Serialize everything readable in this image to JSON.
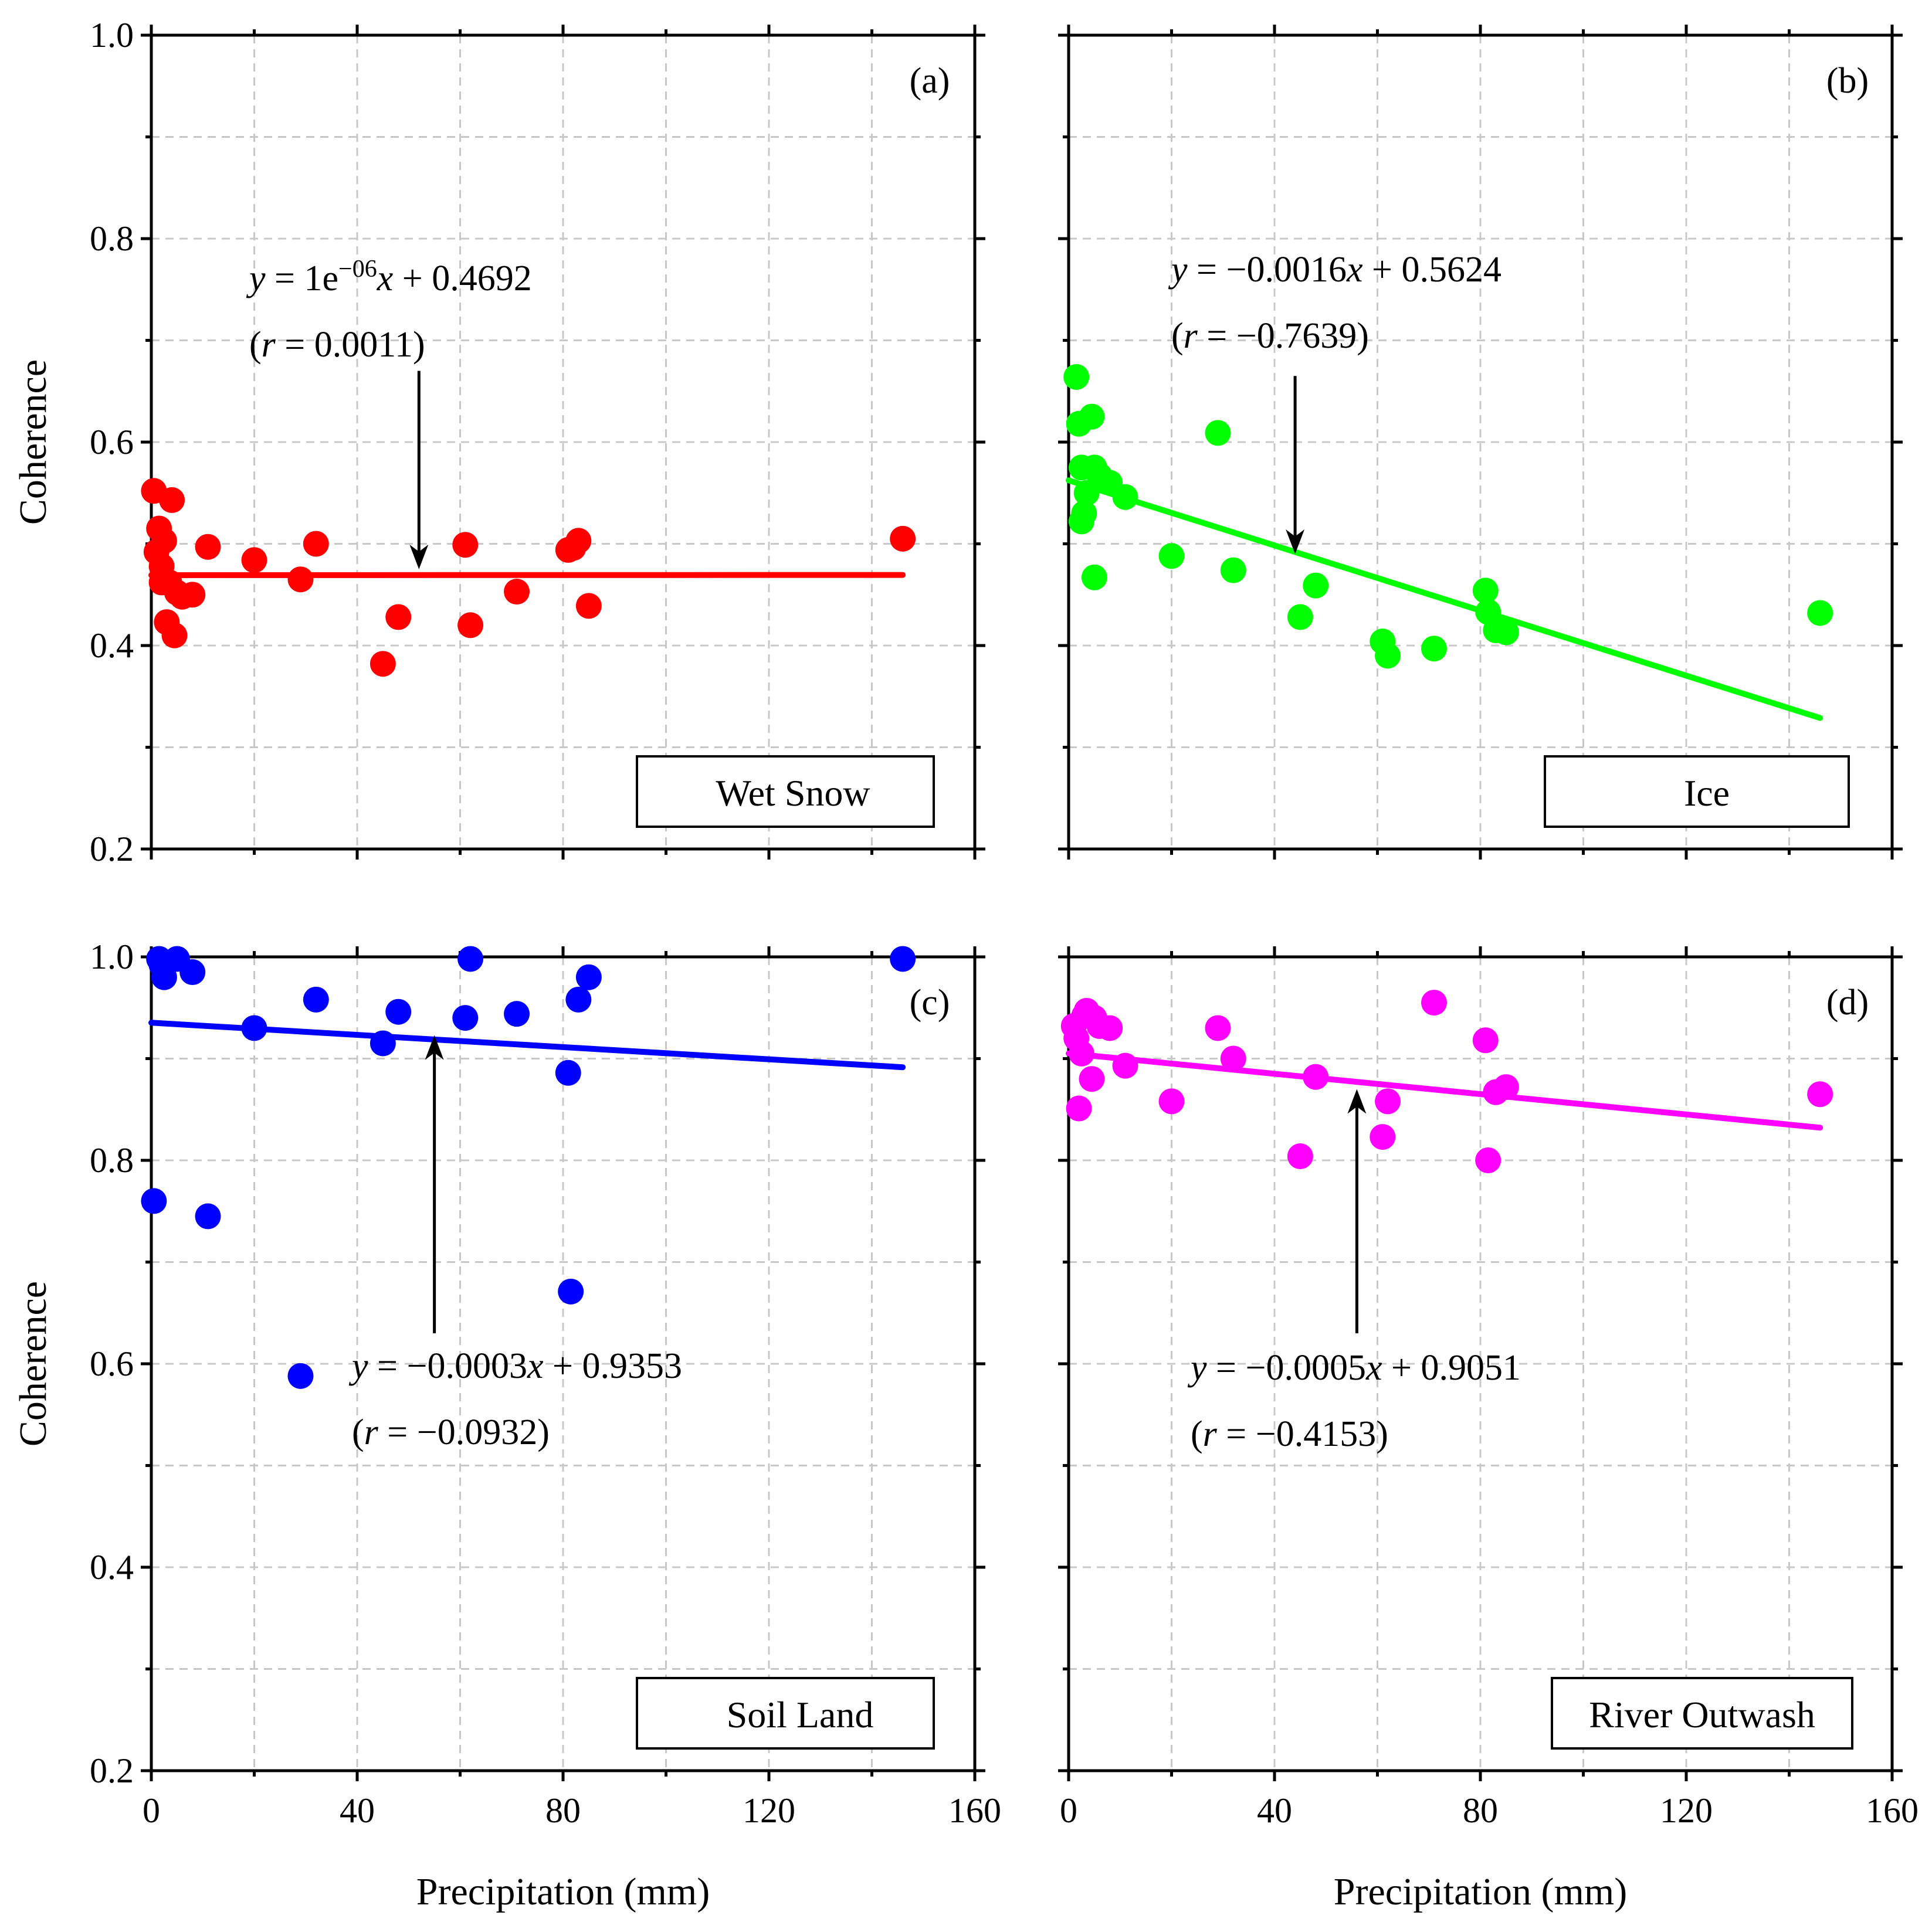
{
  "figure": {
    "x_axis_title": "Precipitation (mm)",
    "y_axis_title": "Coherence",
    "x_tick_labels": [
      "0",
      "40",
      "80",
      "120",
      "160"
    ],
    "y_tick_labels": [
      "0.2",
      "0.4",
      "0.6",
      "0.8",
      "1.0"
    ]
  },
  "chart_data": [
    {
      "type": "scatter",
      "panel": "(a)",
      "title": "Wet Snow",
      "legend": "Wet Snow",
      "color": "#ff0000",
      "xlabel": "",
      "ylabel": "Coherence",
      "xlim": [
        0,
        160
      ],
      "ylim": [
        0.2,
        1.0
      ],
      "grid": true,
      "equation": {
        "prefix": "1e",
        "exp": "−06",
        "x_term": "x + 0.4692",
        "r": "0.0011"
      },
      "fit": {
        "x": [
          0,
          146
        ],
        "y": [
          0.4692,
          0.4694
        ]
      },
      "arrow": {
        "from": [
          52,
          0.67
        ],
        "to": [
          52,
          0.475
        ]
      },
      "points": {
        "x": [
          0.5,
          1,
          1.5,
          2,
          2,
          2.5,
          3,
          3.5,
          4,
          4.5,
          5,
          6,
          8,
          11,
          20,
          29,
          32,
          45,
          48,
          61,
          62,
          71,
          81,
          82,
          83,
          85,
          146
        ],
        "y": [
          0.552,
          0.492,
          0.515,
          0.478,
          0.462,
          0.503,
          0.423,
          0.462,
          0.543,
          0.41,
          0.452,
          0.448,
          0.45,
          0.497,
          0.484,
          0.465,
          0.5,
          0.382,
          0.428,
          0.499,
          0.42,
          0.453,
          0.494,
          0.496,
          0.503,
          0.439,
          0.505
        ]
      }
    },
    {
      "type": "scatter",
      "panel": "(b)",
      "title": "Ice",
      "legend": "Ice",
      "color": "#00ff00",
      "xlabel": "",
      "ylabel": "",
      "xlim": [
        0,
        160
      ],
      "ylim": [
        0.2,
        1.0
      ],
      "grid": true,
      "equation": {
        "coef": "−0.0016",
        "x_term": "x + 0.5624",
        "r": "−0.7639"
      },
      "fit": {
        "x": [
          0,
          146
        ],
        "y": [
          0.5624,
          0.3288
        ]
      },
      "arrow": {
        "from": [
          44,
          0.665
        ],
        "to": [
          44,
          0.49
        ]
      },
      "points": {
        "x": [
          1.5,
          2,
          2.5,
          2.5,
          3,
          3.5,
          4.5,
          5,
          5,
          6,
          8,
          11,
          20,
          29,
          32,
          45,
          48,
          61,
          62,
          71,
          81,
          81.5,
          83,
          85,
          146
        ],
        "y": [
          0.664,
          0.618,
          0.575,
          0.522,
          0.53,
          0.55,
          0.625,
          0.575,
          0.467,
          0.567,
          0.56,
          0.546,
          0.488,
          0.609,
          0.474,
          0.428,
          0.459,
          0.404,
          0.39,
          0.397,
          0.454,
          0.433,
          0.415,
          0.413,
          0.432
        ]
      }
    },
    {
      "type": "scatter",
      "panel": "(c)",
      "title": "Soil Land",
      "legend": "Soil Land",
      "color": "#0000ff",
      "xlabel": "Precipitation (mm)",
      "ylabel": "Coherence",
      "xlim": [
        0,
        160
      ],
      "ylim": [
        0.2,
        1.0
      ],
      "grid": true,
      "equation": {
        "coef": "−0.0003",
        "x_term": "x + 0.9353",
        "r": "−0.0932"
      },
      "fit": {
        "x": [
          0,
          146
        ],
        "y": [
          0.9353,
          0.8915
        ]
      },
      "arrow": {
        "from": [
          55,
          0.63
        ],
        "to": [
          55,
          0.923
        ]
      },
      "points": {
        "x": [
          0.5,
          1.5,
          2,
          2.5,
          5,
          8,
          11,
          20,
          29,
          32,
          45,
          48,
          61,
          62,
          71,
          81,
          81.5,
          83,
          85,
          146
        ],
        "y": [
          0.76,
          0.998,
          0.992,
          0.98,
          0.998,
          0.985,
          0.745,
          0.93,
          0.588,
          0.958,
          0.915,
          0.946,
          0.94,
          0.998,
          0.944,
          0.886,
          0.671,
          0.958,
          0.98,
          0.998
        ]
      }
    },
    {
      "type": "scatter",
      "panel": "(d)",
      "title": "River Outwash",
      "legend": "River Outwash",
      "color": "#ff00ff",
      "xlabel": "Precipitation (mm)",
      "ylabel": "",
      "xlim": [
        0,
        160
      ],
      "ylim": [
        0.2,
        1.0
      ],
      "grid": true,
      "equation": {
        "coef": "−0.0005",
        "x_term": "x + 0.9051",
        "r": "−0.4153"
      },
      "fit": {
        "x": [
          0,
          146
        ],
        "y": [
          0.9051,
          0.8321
        ]
      },
      "arrow": {
        "from": [
          56,
          0.63
        ],
        "to": [
          56,
          0.87
        ]
      },
      "points": {
        "x": [
          1,
          1.5,
          2,
          2.5,
          3,
          3.5,
          4.5,
          5,
          6,
          8,
          11,
          20,
          29,
          32,
          45,
          48,
          61,
          62,
          71,
          81,
          81.5,
          83,
          85,
          146
        ],
        "y": [
          0.932,
          0.92,
          0.851,
          0.905,
          0.942,
          0.947,
          0.88,
          0.94,
          0.932,
          0.93,
          0.893,
          0.858,
          0.93,
          0.9,
          0.804,
          0.882,
          0.823,
          0.858,
          0.955,
          0.918,
          0.8,
          0.867,
          0.872,
          0.865
        ]
      }
    }
  ]
}
